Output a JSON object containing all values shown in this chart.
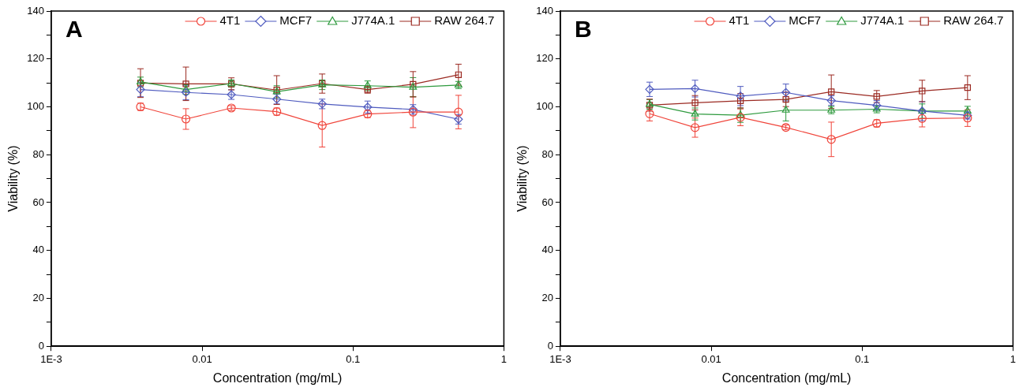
{
  "chart_data": [
    {
      "type": "line",
      "title": "A",
      "xlabel": "Concentration (mg/mL)",
      "ylabel": "Viability (%)",
      "log": "x",
      "legend": "top right",
      "x": [
        0.00390625,
        0.0078125,
        0.015625,
        0.03125,
        0.0625,
        0.125,
        0.25,
        0.5
      ],
      "xlim": [
        0.001,
        1
      ],
      "xticks": [
        {
          "value": 0.001,
          "label": "1E-3"
        },
        0.01,
        0.1,
        1
      ],
      "ylim": [
        0,
        140
      ],
      "yticks": [
        0,
        {
          "value": 10,
          "label": null
        },
        20,
        {
          "value": 30,
          "label": null
        },
        40,
        {
          "value": 50,
          "label": null
        },
        60,
        {
          "value": 70,
          "label": null
        },
        80,
        {
          "value": 90,
          "label": null
        },
        100,
        {
          "value": 110,
          "label": null
        },
        120,
        {
          "value": 130,
          "label": null
        },
        140
      ],
      "series": [
        {
          "name": "4T1",
          "color": "#f0443a",
          "marker": "circle",
          "values": [
            100,
            94.9,
            99.5,
            98,
            92.2,
            97,
            97.8,
            97.8
          ],
          "errors": [
            1.5,
            4.3,
            1,
            1.5,
            9,
            1.5,
            6.5,
            7
          ]
        },
        {
          "name": "MCF7",
          "color": "#4f5bbf",
          "marker": "diamond",
          "values": [
            107.2,
            106,
            105.1,
            103.2,
            101.2,
            99.9,
            98.9,
            94.8
          ],
          "errors": [
            3,
            3,
            2,
            2,
            2,
            2.5,
            2,
            2
          ]
        },
        {
          "name": "J774A.1",
          "color": "#2e9a3e",
          "marker": "triangle",
          "values": [
            110.4,
            107.2,
            109.7,
            106.3,
            109.2,
            108.8,
            108.2,
            109.1
          ],
          "errors": [
            2,
            2,
            1.5,
            2.5,
            2,
            2,
            4,
            1.5
          ]
        },
        {
          "name": "RAW 264.7",
          "color": "#9b2a22",
          "marker": "square",
          "values": [
            109.9,
            109.6,
            109.6,
            107,
            109.7,
            107.2,
            109.4,
            113.4
          ],
          "errors": [
            6,
            7,
            2.5,
            6,
            4,
            1.5,
            5.3,
            4.4
          ]
        }
      ]
    },
    {
      "type": "line",
      "title": "B",
      "xlabel": "Concentration (mg/mL)",
      "ylabel": "Viability (%)",
      "log": "x",
      "legend": "top right",
      "x": [
        0.00390625,
        0.0078125,
        0.015625,
        0.03125,
        0.0625,
        0.125,
        0.25,
        0.5
      ],
      "xlim": [
        0.001,
        1
      ],
      "xticks": [
        {
          "value": 0.001,
          "label": "1E-3"
        },
        0.01,
        0.1,
        1
      ],
      "ylim": [
        0,
        140
      ],
      "yticks": [
        0,
        {
          "value": 10,
          "label": null
        },
        20,
        {
          "value": 30,
          "label": null
        },
        40,
        {
          "value": 50,
          "label": null
        },
        60,
        {
          "value": 70,
          "label": null
        },
        80,
        {
          "value": 90,
          "label": null
        },
        100,
        {
          "value": 110,
          "label": null
        },
        120,
        {
          "value": 130,
          "label": null
        },
        140
      ],
      "series": [
        {
          "name": "4T1",
          "color": "#f0443a",
          "marker": "circle",
          "values": [
            97.1,
            91.3,
            95.6,
            91.4,
            86.4,
            93.1,
            95.1,
            95.3
          ],
          "errors": [
            3,
            4,
            3.5,
            1,
            7.2,
            1.5,
            3.5,
            3.5
          ]
        },
        {
          "name": "MCF7",
          "color": "#4f5bbf",
          "marker": "diamond",
          "values": [
            107.3,
            107.6,
            104.5,
            106,
            102.6,
            100.6,
            98.2,
            96.4
          ],
          "errors": [
            3,
            3.5,
            4,
            3.5,
            2,
            2,
            4,
            1.5
          ]
        },
        {
          "name": "J774A.1",
          "color": "#2e9a3e",
          "marker": "triangle",
          "values": [
            101,
            97,
            96.5,
            98.6,
            98.6,
            99,
            98.2,
            98.2
          ],
          "errors": [
            2,
            2.5,
            3,
            4.5,
            1.5,
            1.5,
            3,
            2
          ]
        },
        {
          "name": "RAW 264.7",
          "color": "#9b2a22",
          "marker": "square",
          "values": [
            100.7,
            101.7,
            102.5,
            103.1,
            106.3,
            104.3,
            106.6,
            108
          ],
          "errors": [
            2.5,
            3,
            3,
            3,
            7,
            2.5,
            4.5,
            5
          ]
        }
      ]
    }
  ]
}
